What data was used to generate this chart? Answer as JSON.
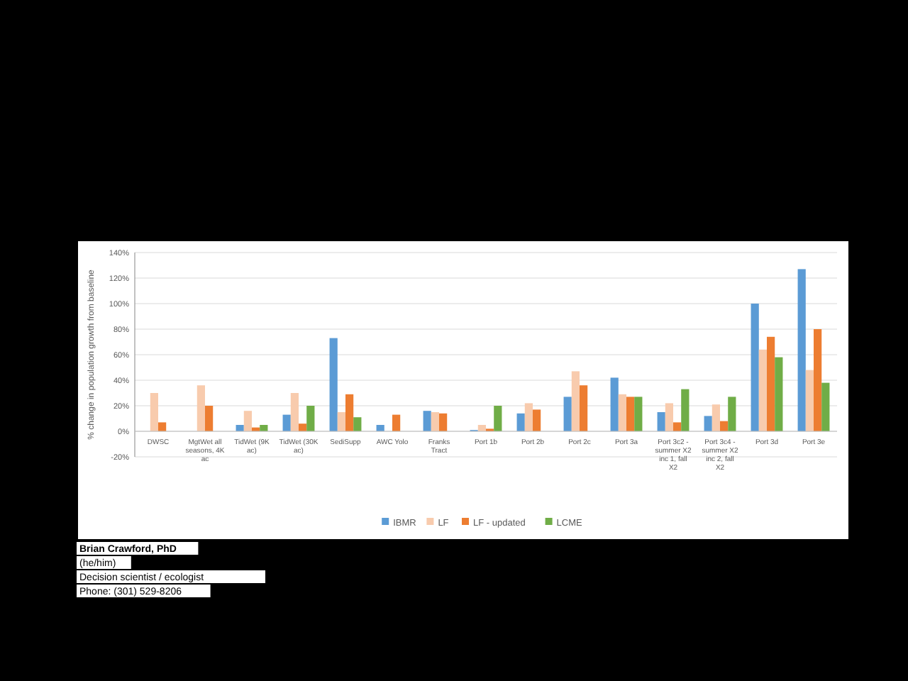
{
  "chart_data": {
    "type": "bar",
    "ylabel": "% change in population growth from baseline",
    "categories": [
      "DWSC",
      "MgtWet all seasons, 4K ac",
      "TidWet (9K ac)",
      "TidWet (30K ac)",
      "SediSupp",
      "AWC Yolo",
      "Franks Tract",
      "Port 1b",
      "Port 2b",
      "Port 2c",
      "Port 3a",
      "Port 3c2 - summer X2 inc 1, fall X2",
      "Port 3c4 - summer X2 inc 2, fall X2",
      "Port 3d",
      "Port 3e"
    ],
    "series": [
      {
        "name": "IBMR",
        "color": "#5b9bd5",
        "values": [
          null,
          null,
          5,
          13,
          73,
          5,
          16,
          1,
          14,
          27,
          42,
          15,
          12,
          100,
          127
        ]
      },
      {
        "name": "LF",
        "color": "#f8cbad",
        "values": [
          30,
          36,
          16,
          30,
          15,
          null,
          15,
          5,
          22,
          47,
          29,
          22,
          21,
          64,
          48
        ]
      },
      {
        "name": "LF - updated",
        "color": "#ed7d31",
        "values": [
          7,
          20,
          3,
          6,
          29,
          13,
          14,
          2,
          17,
          36,
          27,
          7,
          8,
          74,
          80
        ]
      },
      {
        "name": "LCME",
        "color": "#70ad47",
        "values": [
          null,
          null,
          5,
          20,
          11,
          null,
          null,
          20,
          null,
          null,
          27,
          33,
          27,
          58,
          38
        ]
      }
    ],
    "ylim": [
      -20,
      140
    ],
    "yticks": [
      {
        "value": -20,
        "label": "-20%"
      },
      {
        "value": 0,
        "label": "0%"
      },
      {
        "value": 20,
        "label": "20%"
      },
      {
        "value": 40,
        "label": "40%"
      },
      {
        "value": 60,
        "label": "60%"
      },
      {
        "value": 80,
        "label": "80%"
      },
      {
        "value": 100,
        "label": "100%"
      },
      {
        "value": 120,
        "label": "120%"
      },
      {
        "value": 140,
        "label": "140%"
      }
    ],
    "grid": "y",
    "legend": "bottom",
    "annotations": [
      "Brian Crawford, PhD",
      "(he/him)",
      "Decision scientist / ecologist",
      "Phone: (301) 529-8206"
    ]
  }
}
